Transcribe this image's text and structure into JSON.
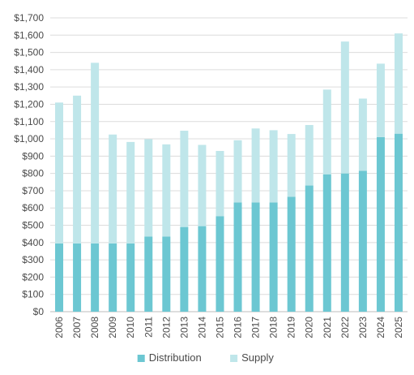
{
  "chart_data": {
    "type": "bar",
    "stacked": true,
    "categories": [
      "2006",
      "2007",
      "2008",
      "2009",
      "2010",
      "2011",
      "2012",
      "2013",
      "2014",
      "2015",
      "2016",
      "2017",
      "2018",
      "2019",
      "2020",
      "2021",
      "2022",
      "2023",
      "2024",
      "2025"
    ],
    "series": [
      {
        "name": "Distribution",
        "color": "#6cc7d2",
        "values": [
          395,
          395,
          395,
          395,
          395,
          435,
          435,
          490,
          495,
          553,
          632,
          632,
          632,
          665,
          730,
          795,
          800,
          815,
          1010,
          1030
        ]
      },
      {
        "name": "Supply",
        "color": "#bfe6ea",
        "values": [
          815,
          855,
          1045,
          630,
          587,
          563,
          533,
          557,
          470,
          377,
          360,
          428,
          418,
          363,
          350,
          490,
          763,
          418,
          425,
          580
        ]
      }
    ],
    "ylim": [
      0,
      1700
    ],
    "yticks": [
      "$0",
      "$100",
      "$200",
      "$300",
      "$400",
      "$500",
      "$600",
      "$700",
      "$800",
      "$900",
      "$1,000",
      "$1,100",
      "$1,200",
      "$1,300",
      "$1,400",
      "$1,500",
      "$1,600",
      "$1,700"
    ],
    "ytick_values": [
      0,
      100,
      200,
      300,
      400,
      500,
      600,
      700,
      800,
      900,
      1000,
      1100,
      1200,
      1300,
      1400,
      1500,
      1600,
      1700
    ],
    "title": "",
    "xlabel": "",
    "ylabel": "",
    "grid": true,
    "legend": "bottom-center",
    "gridline_color": "#dcdcdc",
    "axis_color": "#bdbdbd"
  }
}
